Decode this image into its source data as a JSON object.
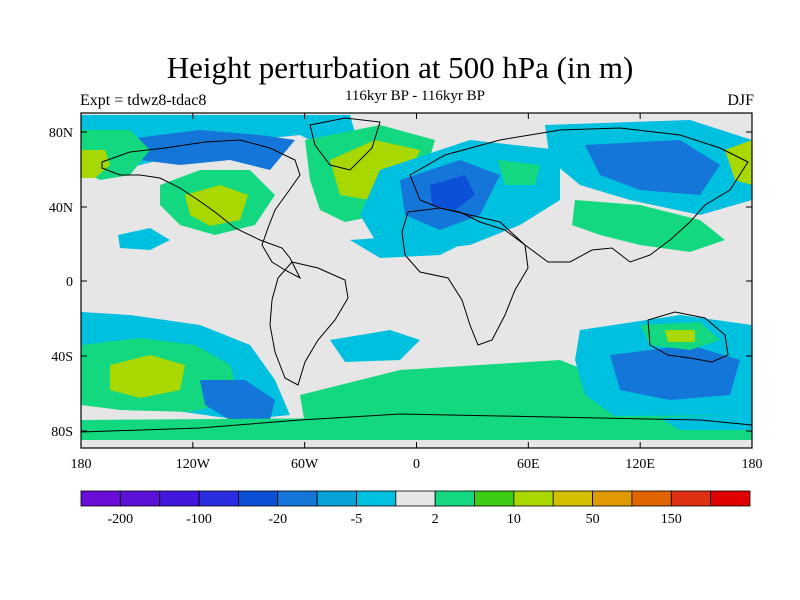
{
  "header": {
    "title": "Height perturbation at 500 hPa (in m)",
    "subtitle": "116kyr BP - 116kyr BP",
    "left_label": "Expt = tdwz8-tdac8",
    "right_label": "DJF"
  },
  "map": {
    "projection": "cylindrical-equidistant",
    "lon_range": [
      -180,
      180
    ],
    "lat_range": [
      -90,
      90
    ],
    "lon_ticks": [
      "180",
      "120W",
      "60W",
      "0",
      "60E",
      "120E",
      "180"
    ],
    "lat_ticks": [
      "80N",
      "40N",
      "0",
      "40S",
      "80S"
    ],
    "background_color": "#e6e6e6",
    "coastline_color": "#000000"
  },
  "colorbar": {
    "colors": [
      "#6a0dd6",
      "#5c11d9",
      "#4417de",
      "#2a2ee0",
      "#0d50d8",
      "#1476d8",
      "#0aa0d8",
      "#00c0e0",
      "#e6e6e6",
      "#14d880",
      "#3ccc14",
      "#a8d800",
      "#d4c000",
      "#e09a00",
      "#e06400",
      "#e03014",
      "#e00000"
    ],
    "labels": [
      "-200",
      "-100",
      "-20",
      "-5",
      "2",
      "10",
      "50",
      "150"
    ]
  }
}
